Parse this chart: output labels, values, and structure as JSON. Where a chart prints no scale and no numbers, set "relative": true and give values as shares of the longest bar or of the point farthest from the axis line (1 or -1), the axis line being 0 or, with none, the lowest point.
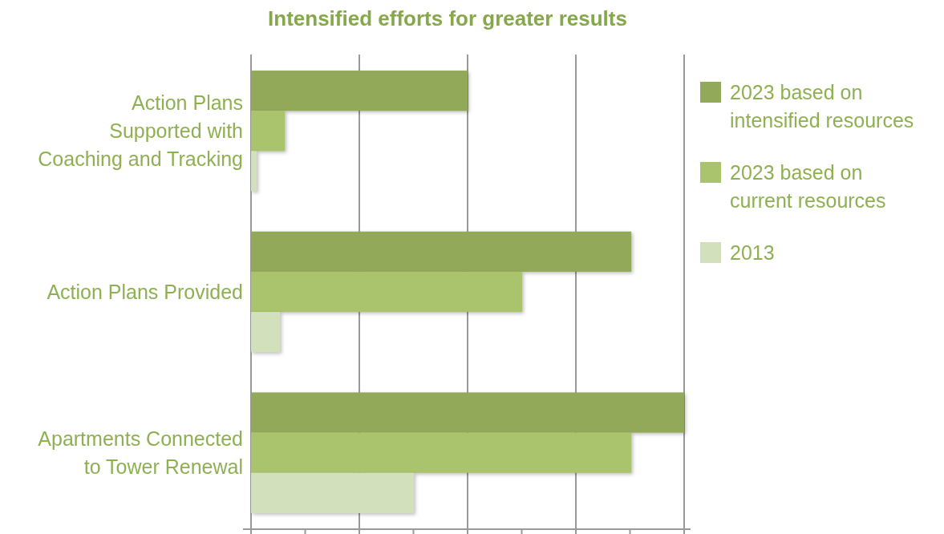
{
  "chart_data": {
    "type": "bar",
    "orientation": "horizontal",
    "relative": true,
    "title": "Intensified efforts for greater results",
    "categories": [
      "Action Plans\nSupported with\nCoaching and Tracking",
      "Action Plans Provided",
      "Apartments Connected\nto Tower Renewal"
    ],
    "series": [
      {
        "name": "2023 based on\nintensified resources",
        "color": "#93a95a",
        "values": [
          0.5,
          0.878,
          1
        ]
      },
      {
        "name": "2023 based on\ncurrent resources",
        "color": "#a9c46c",
        "values": [
          0.078,
          0.626,
          0.878
        ]
      },
      {
        "name": "2013",
        "color": "#d2e0bc",
        "values": [
          0.013,
          0.067,
          0.376
        ]
      }
    ],
    "grid": "x",
    "legend": "right"
  }
}
